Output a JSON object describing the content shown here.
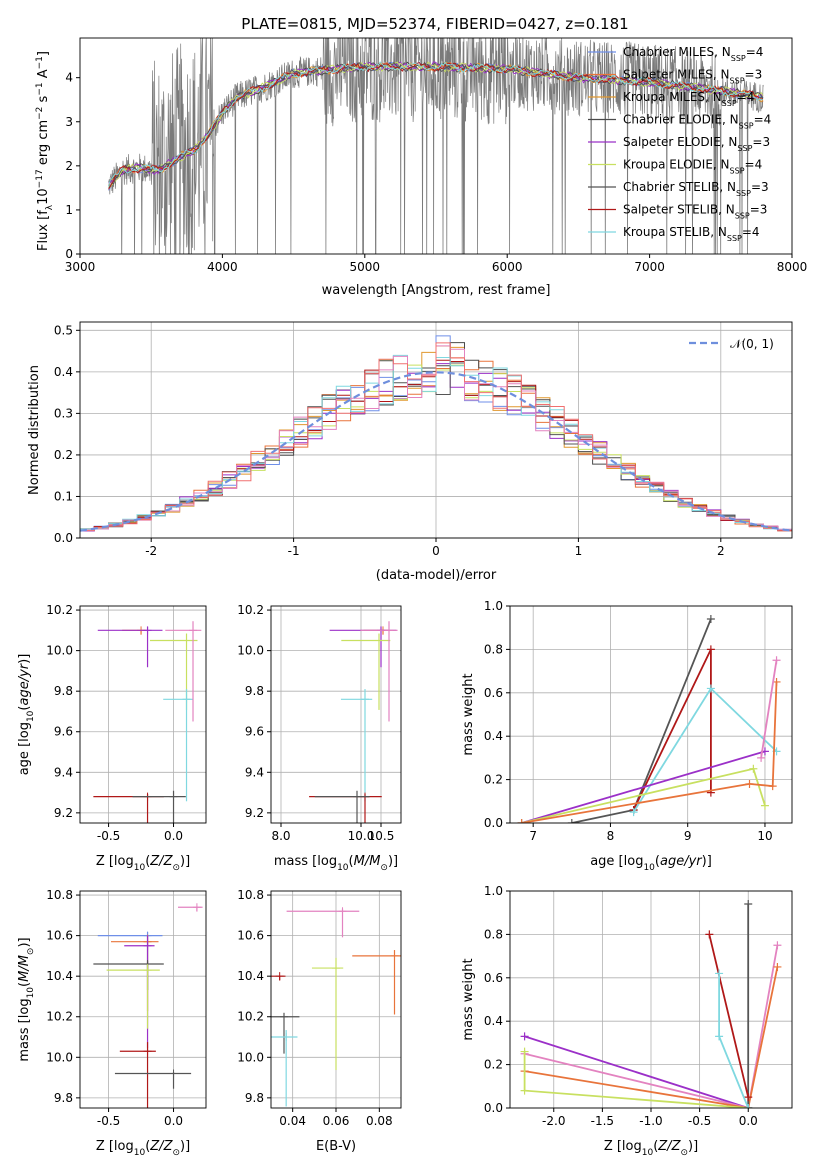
{
  "figure": {
    "title": "PLATE=0815, MJD=52374, FIBERID=0427, z=0.181"
  },
  "legend_colors": {
    "Chabrier MILES": "#6f8fe8",
    "Salpeter MILES": "#e8743b",
    "Kroupa MILES": "#e0982f",
    "Chabrier ELODIE": "#4a4a4a",
    "Salpeter ELODIE": "#9b30c8",
    "Kroupa ELODIE": "#c8e060",
    "Chabrier STELIB": "#555555",
    "Salpeter STELIB": "#b01818",
    "Kroupa STELIB": "#7fd8e0"
  },
  "chart_data": [
    {
      "id": "spectrum",
      "type": "line",
      "xlabel": "wavelength [Angstrom, rest frame]",
      "ylabel": "Flux [f_λ 10^-17 erg cm^-2 s^-1 A^-1]",
      "xlim": [
        3000,
        8000
      ],
      "ylim": [
        0,
        4.9
      ],
      "xticks": [
        3000,
        4000,
        5000,
        6000,
        7000,
        8000
      ],
      "yticks": [
        0,
        1,
        2,
        3,
        4
      ],
      "grid": false,
      "legend_position": "right",
      "legend": [
        {
          "name": "Chabrier MILES, N_SSP=4",
          "prefix": "Chabrier MILES, N",
          "sub": "SSP",
          "suffix": "=4"
        },
        {
          "name": "Salpeter MILES, N_SSP=3",
          "prefix": "Salpeter MILES, N",
          "sub": "SSP",
          "suffix": "=3"
        },
        {
          "name": "Kroupa MILES, N_SSP=4",
          "prefix": "Kroupa MILES, N",
          "sub": "SSP",
          "suffix": "=4"
        },
        {
          "name": "Chabrier ELODIE, N_SSP=4",
          "prefix": "Chabrier ELODIE, N",
          "sub": "SSP",
          "suffix": "=4"
        },
        {
          "name": "Salpeter ELODIE, N_SSP=3",
          "prefix": "Salpeter ELODIE, N",
          "sub": "SSP",
          "suffix": "=3"
        },
        {
          "name": "Kroupa ELODIE, N_SSP=4",
          "prefix": "Kroupa ELODIE, N",
          "sub": "SSP",
          "suffix": "=4"
        },
        {
          "name": "Chabrier STELIB, N_SSP=3",
          "prefix": "Chabrier STELIB, N",
          "sub": "SSP",
          "suffix": "=3"
        },
        {
          "name": "Salpeter STELIB, N_SSP=3",
          "prefix": "Salpeter STELIB, N",
          "sub": "SSP",
          "suffix": "=3"
        },
        {
          "name": "Kroupa STELIB, N_SSP=4",
          "prefix": "Kroupa STELIB, N",
          "sub": "SSP",
          "suffix": "=4"
        }
      ],
      "continuum": [
        {
          "x": 3200,
          "y": 1.55
        },
        {
          "x": 3300,
          "y": 1.9
        },
        {
          "x": 3400,
          "y": 1.95
        },
        {
          "x": 3550,
          "y": 1.9
        },
        {
          "x": 3700,
          "y": 2.2
        },
        {
          "x": 3800,
          "y": 2.35
        },
        {
          "x": 3900,
          "y": 2.7
        },
        {
          "x": 4000,
          "y": 3.2
        },
        {
          "x": 4100,
          "y": 3.55
        },
        {
          "x": 4300,
          "y": 3.8
        },
        {
          "x": 4500,
          "y": 4.1
        },
        {
          "x": 4800,
          "y": 4.2
        },
        {
          "x": 5000,
          "y": 4.25
        },
        {
          "x": 5500,
          "y": 4.25
        },
        {
          "x": 6000,
          "y": 4.2
        },
        {
          "x": 6500,
          "y": 4.0
        },
        {
          "x": 7000,
          "y": 3.9
        },
        {
          "x": 7500,
          "y": 3.7
        },
        {
          "x": 7800,
          "y": 3.55
        }
      ]
    },
    {
      "id": "residuals",
      "type": "histogram",
      "xlabel": "(data-model)/error",
      "ylabel": "Normed distribution",
      "xlim": [
        -2.5,
        2.5
      ],
      "ylim": [
        0,
        0.52
      ],
      "xticks": [
        -2,
        -1,
        0,
        1,
        2
      ],
      "yticks": [
        0.0,
        0.1,
        0.2,
        0.3,
        0.4,
        0.5
      ],
      "grid": true,
      "legend_position": "top-right",
      "reference_curve": {
        "name": "N(0,1)",
        "mean": 0,
        "sigma": 1,
        "color": "#6e8fdd"
      }
    },
    {
      "id": "z-age",
      "type": "scatter",
      "xlabel": "Z [log10(Z/Z⊙)]",
      "ylabel": "age [log10(age/yr)]",
      "xlim": [
        -0.72,
        0.25
      ],
      "ylim": [
        9.15,
        10.22
      ],
      "xticks": [
        -0.5,
        0.0
      ],
      "yticks": [
        9.2,
        9.4,
        9.6,
        9.8,
        10.0,
        10.2
      ],
      "grid": true,
      "points": [
        {
          "x": -0.25,
          "y": 10.1,
          "color": "#e8743b"
        },
        {
          "x": -0.2,
          "y": 10.1,
          "color": "#9b30c8"
        },
        {
          "x": 0.1,
          "y": 10.05,
          "color": "#c8e060"
        },
        {
          "x": 0.1,
          "y": 9.76,
          "color": "#7fd8e0"
        },
        {
          "x": -0.2,
          "y": 9.28,
          "color": "#b01818"
        },
        {
          "x": 0.0,
          "y": 9.28,
          "color": "#555555"
        },
        {
          "x": 0.15,
          "y": 10.1,
          "color": "#e383c0"
        }
      ]
    },
    {
      "id": "mass-age",
      "type": "scatter",
      "xlabel": "mass [log10(M/M⊙)]",
      "ylabel": "",
      "xlim": [
        7.75,
        11.0
      ],
      "ylim": [
        9.15,
        10.22
      ],
      "xticks": [
        8.0,
        10.0,
        10.5
      ],
      "yticks": [
        9.2,
        9.4,
        9.6,
        9.8,
        10.0,
        10.2
      ],
      "grid": true,
      "points": [
        {
          "x": 10.55,
          "y": 10.1,
          "color": "#e8743b"
        },
        {
          "x": 10.5,
          "y": 10.1,
          "color": "#9b30c8"
        },
        {
          "x": 10.45,
          "y": 10.05,
          "color": "#c8e060"
        },
        {
          "x": 10.1,
          "y": 9.76,
          "color": "#7fd8e0"
        },
        {
          "x": 10.1,
          "y": 9.28,
          "color": "#b01818"
        },
        {
          "x": 9.9,
          "y": 9.28,
          "color": "#555555"
        },
        {
          "x": 10.7,
          "y": 10.1,
          "color": "#e383c0"
        }
      ]
    },
    {
      "id": "weight-age",
      "type": "line",
      "xlabel": "age [log10(age/yr)]",
      "ylabel": "mass weight",
      "xlim": [
        6.7,
        10.35
      ],
      "ylim": [
        0,
        1.0
      ],
      "xticks": [
        7,
        8,
        9,
        10
      ],
      "yticks": [
        0.0,
        0.2,
        0.4,
        0.6,
        0.8,
        1.0
      ],
      "grid": true,
      "series": [
        {
          "color": "#555555",
          "x": [
            7.5,
            8.3,
            9.3
          ],
          "y": [
            0.0,
            0.06,
            0.94
          ]
        },
        {
          "color": "#b01818",
          "x": [
            8.3,
            9.3,
            9.3
          ],
          "y": [
            0.06,
            0.8,
            0.14
          ]
        },
        {
          "color": "#7fd8e0",
          "x": [
            8.3,
            9.3,
            10.15
          ],
          "y": [
            0.05,
            0.62,
            0.33
          ]
        },
        {
          "color": "#9b30c8",
          "x": [
            6.85,
            10.0
          ],
          "y": [
            0.0,
            0.33
          ]
        },
        {
          "color": "#c8e060",
          "x": [
            6.85,
            9.85,
            10.0
          ],
          "y": [
            0.0,
            0.25,
            0.08
          ]
        },
        {
          "color": "#e8743b",
          "x": [
            6.85,
            9.8,
            10.1,
            10.15
          ],
          "y": [
            0.0,
            0.18,
            0.17,
            0.65
          ]
        },
        {
          "color": "#e383c0",
          "x": [
            9.95,
            10.15
          ],
          "y": [
            0.3,
            0.75
          ]
        }
      ]
    },
    {
      "id": "z-mass",
      "type": "scatter",
      "xlabel": "Z [log10(Z/Z⊙)]",
      "ylabel": "mass [log10(M/M⊙)]",
      "xlim": [
        -0.72,
        0.25
      ],
      "ylim": [
        9.75,
        10.82
      ],
      "xticks": [
        -0.5,
        0.0
      ],
      "yticks": [
        9.8,
        10.0,
        10.2,
        10.4,
        10.6,
        10.8
      ],
      "grid": true,
      "points": [
        {
          "x": 0.18,
          "y": 10.74,
          "color": "#e383c0"
        },
        {
          "x": -0.2,
          "y": 10.6,
          "color": "#6f8fe8"
        },
        {
          "x": -0.2,
          "y": 10.57,
          "color": "#e8743b"
        },
        {
          "x": -0.2,
          "y": 10.55,
          "color": "#9b30c8"
        },
        {
          "x": -0.2,
          "y": 10.46,
          "color": "#555555"
        },
        {
          "x": -0.2,
          "y": 10.43,
          "color": "#c8e060"
        },
        {
          "x": -0.2,
          "y": 10.03,
          "color": "#b01818"
        },
        {
          "x": 0.0,
          "y": 9.92,
          "color": "#555555"
        }
      ]
    },
    {
      "id": "ebv-mass",
      "type": "scatter",
      "xlabel": "E(B-V)",
      "ylabel": "",
      "xlim": [
        0.03,
        0.09
      ],
      "ylim": [
        9.75,
        10.82
      ],
      "xticks": [
        0.04,
        0.06,
        0.08
      ],
      "yticks": [
        9.8,
        10.0,
        10.2,
        10.4,
        10.6,
        10.8
      ],
      "grid": true,
      "points": [
        {
          "x": 0.034,
          "y": 10.4,
          "color": "#b01818"
        },
        {
          "x": 0.036,
          "y": 10.2,
          "color": "#555555"
        },
        {
          "x": 0.037,
          "y": 10.1,
          "color": "#7fd8e0"
        },
        {
          "x": 0.06,
          "y": 10.44,
          "color": "#c8e060"
        },
        {
          "x": 0.063,
          "y": 10.72,
          "color": "#e383c0"
        },
        {
          "x": 0.087,
          "y": 10.5,
          "color": "#e8743b"
        }
      ]
    },
    {
      "id": "weight-z",
      "type": "line",
      "xlabel": "Z [log10(Z/Z⊙)]",
      "ylabel": "mass weight",
      "xlim": [
        -2.45,
        0.45
      ],
      "ylim": [
        0,
        1.0
      ],
      "xticks": [
        -2.0,
        -1.5,
        -1.0,
        -0.5,
        0.0
      ],
      "yticks": [
        0.0,
        0.2,
        0.4,
        0.6,
        0.8,
        1.0
      ],
      "grid": true,
      "series": [
        {
          "color": "#9b30c8",
          "x": [
            -2.3,
            0.0
          ],
          "y": [
            0.33,
            0.0
          ]
        },
        {
          "color": "#e383c0",
          "x": [
            -2.3,
            0.0,
            0.3
          ],
          "y": [
            0.25,
            0.0,
            0.75
          ]
        },
        {
          "color": "#e8743b",
          "x": [
            -2.3,
            0.0,
            0.3
          ],
          "y": [
            0.17,
            0.0,
            0.65
          ]
        },
        {
          "color": "#c8e060",
          "x": [
            -2.3,
            -2.3,
            0.0
          ],
          "y": [
            0.26,
            0.08,
            0.0
          ]
        },
        {
          "color": "#555555",
          "x": [
            0.0,
            0.0
          ],
          "y": [
            0.0,
            0.94
          ]
        },
        {
          "color": "#b01818",
          "x": [
            -0.4,
            0.0
          ],
          "y": [
            0.8,
            0.05
          ]
        },
        {
          "color": "#7fd8e0",
          "x": [
            -0.3,
            -0.3,
            0.0
          ],
          "y": [
            0.62,
            0.33,
            0.0
          ]
        }
      ]
    }
  ]
}
